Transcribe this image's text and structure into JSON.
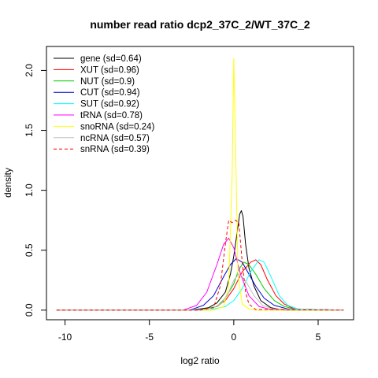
{
  "chart_data": {
    "type": "line",
    "title": "number read ratio dcp2_37C_2/WT_37C_2",
    "xlabel": "log2 ratio",
    "ylabel": "density",
    "xlim": [
      -11.1,
      7.1
    ],
    "ylim": [
      -0.08,
      2.2
    ],
    "x_ticks": [
      -10,
      -5,
      0,
      5
    ],
    "x_tick_labels": [
      "-10",
      "-5",
      "0",
      "5"
    ],
    "y_ticks": [
      0.0,
      0.5,
      1.0,
      1.5,
      2.0
    ],
    "y_tick_labels": [
      "0.0",
      "0.5",
      "1.0",
      "1.5",
      "2.0"
    ],
    "grid": false,
    "legend_position": "top-left",
    "series": [
      {
        "name": "gene (sd=0.64)",
        "color": "#000000",
        "dash": "solid",
        "x": [
          -10.5,
          -2.5,
          -1.5,
          -1.0,
          -0.5,
          -0.2,
          0.0,
          0.2,
          0.35,
          0.45,
          0.55,
          0.7,
          0.9,
          1.2,
          1.6,
          2.2,
          3.0,
          6.5
        ],
        "y": [
          0,
          0,
          0.02,
          0.06,
          0.15,
          0.3,
          0.45,
          0.65,
          0.8,
          0.83,
          0.78,
          0.55,
          0.35,
          0.2,
          0.08,
          0.02,
          0,
          0
        ]
      },
      {
        "name": "XUT (sd=0.96)",
        "color": "#ff0000",
        "dash": "solid",
        "x": [
          -10.5,
          -2.0,
          -1.0,
          -0.5,
          0.0,
          0.5,
          1.0,
          1.3,
          1.6,
          2.0,
          2.5,
          3.0,
          3.6,
          6.5
        ],
        "y": [
          0,
          0,
          0.03,
          0.08,
          0.18,
          0.32,
          0.4,
          0.42,
          0.38,
          0.25,
          0.12,
          0.05,
          0.01,
          0
        ]
      },
      {
        "name": "NUT (sd=0.9)",
        "color": "#00cc00",
        "dash": "solid",
        "x": [
          -10.5,
          -2.0,
          -1.0,
          -0.5,
          0.0,
          0.3,
          0.6,
          0.9,
          1.3,
          1.8,
          2.4,
          3.0,
          3.6,
          6.5
        ],
        "y": [
          0,
          0,
          0.03,
          0.1,
          0.22,
          0.34,
          0.4,
          0.38,
          0.3,
          0.18,
          0.08,
          0.03,
          0.01,
          0
        ]
      },
      {
        "name": "CUT (sd=0.94)",
        "color": "#0000cc",
        "dash": "solid",
        "x": [
          -10.5,
          -2.6,
          -1.8,
          -1.2,
          -0.6,
          -0.2,
          0.15,
          0.5,
          0.9,
          1.3,
          1.8,
          2.4,
          3.2,
          6.5
        ],
        "y": [
          0,
          0,
          0.04,
          0.12,
          0.28,
          0.38,
          0.43,
          0.4,
          0.3,
          0.2,
          0.1,
          0.04,
          0.01,
          0
        ]
      },
      {
        "name": "SUT (sd=0.92)",
        "color": "#00ffff",
        "dash": "solid",
        "x": [
          -10.5,
          -1.5,
          -0.5,
          0.0,
          0.5,
          1.0,
          1.5,
          1.8,
          2.2,
          2.7,
          3.2,
          3.8,
          6.5
        ],
        "y": [
          0,
          0,
          0.03,
          0.08,
          0.18,
          0.32,
          0.42,
          0.4,
          0.28,
          0.12,
          0.04,
          0.01,
          0
        ]
      },
      {
        "name": "tRNA (sd=0.78)",
        "color": "#ff00ff",
        "dash": "solid",
        "x": [
          -10.5,
          -3.0,
          -2.2,
          -1.6,
          -1.0,
          -0.6,
          -0.3,
          0.0,
          0.4,
          0.9,
          1.5,
          2.2,
          6.5
        ],
        "y": [
          0,
          0,
          0.04,
          0.15,
          0.38,
          0.55,
          0.6,
          0.52,
          0.3,
          0.12,
          0.03,
          0.005,
          0
        ]
      },
      {
        "name": "snoRNA (sd=0.24)",
        "color": "#ffff00",
        "dash": "solid",
        "x": [
          -10.5,
          -1.2,
          -0.6,
          -0.3,
          -0.1,
          0.0,
          0.1,
          0.25,
          0.5,
          0.9,
          1.4,
          6.5
        ],
        "y": [
          0,
          0,
          0.03,
          0.2,
          1.1,
          2.1,
          1.4,
          0.3,
          0.05,
          0.01,
          0,
          0
        ]
      },
      {
        "name": "ncRNA (sd=0.57)",
        "color": "#bebebe",
        "dash": "solid",
        "x": [
          -10.5,
          -2.0,
          -1.2,
          -0.7,
          -0.3,
          0.0,
          0.3,
          0.5,
          0.8,
          1.2,
          1.7,
          2.3,
          6.5
        ],
        "y": [
          0,
          0,
          0.02,
          0.06,
          0.15,
          0.25,
          0.3,
          0.28,
          0.22,
          0.12,
          0.04,
          0.01,
          0
        ]
      },
      {
        "name": "snRNA (sd=0.39)",
        "color": "#ff0000",
        "dash": "dashed",
        "x": [
          -10.5,
          -2.0,
          -1.2,
          -0.8,
          -0.5,
          -0.3,
          -0.1,
          0.1,
          0.3,
          0.5,
          0.7,
          0.9,
          1.3,
          6.5
        ],
        "y": [
          0,
          0,
          0.02,
          0.2,
          0.55,
          0.75,
          0.73,
          0.75,
          0.73,
          0.4,
          0.15,
          0.05,
          0.005,
          0
        ]
      }
    ]
  }
}
